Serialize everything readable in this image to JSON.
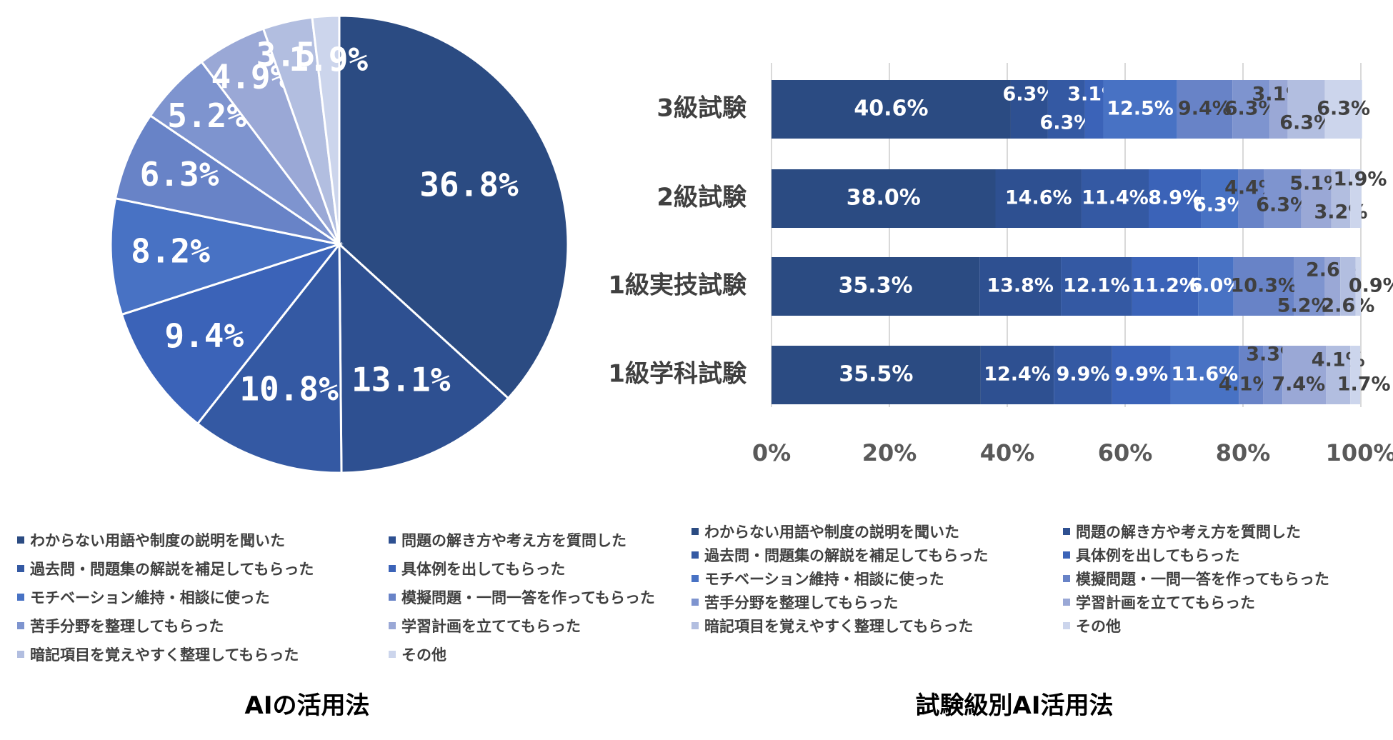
{
  "colors": [
    "#2B4B82",
    "#2E5091",
    "#3459A3",
    "#3B63B8",
    "#4872C4",
    "#6883C7",
    "#7E94CF",
    "#9AA8D6",
    "#B2BEE0",
    "#CCD5EC"
  ],
  "legend_labels": [
    "わからない用語や制度の説明を聞いた",
    "問題の解き方や考え方を質問した",
    "過去問・問題集の解説を補足してもらった",
    "具体例を出してもらった",
    "モチベーション維持・相談に使った",
    "模擬問題・一問一答を作ってもらった",
    "苦手分野を整理してもらった",
    "学習計画を立ててもらった",
    "暗記項目を覚えやすく整理してもらった",
    "その他"
  ],
  "captions": {
    "pie": "AIの活用法",
    "bar": "試験級別AI活用法"
  },
  "chart_data": [
    {
      "type": "pie",
      "title": "AIの活用法",
      "categories": [
        "わからない用語や制度の説明を聞いた",
        "問題の解き方や考え方を質問した",
        "過去問・問題集の解説を補足してもらった",
        "具体例を出してもらった",
        "モチベーション維持・相談に使った",
        "模擬問題・一問一答を作ってもらった",
        "苦手分野を整理してもらった",
        "学習計画を立ててもらった",
        "暗記項目を覚えやすく整理してもらった",
        "その他"
      ],
      "values": [
        36.8,
        13.1,
        10.8,
        9.4,
        8.2,
        6.3,
        5.2,
        4.9,
        3.5,
        1.9
      ],
      "labels": [
        "36.8%",
        "13.1%",
        "10.8%",
        "9.4%",
        "8.2%",
        "6.3%",
        "5.2%",
        "4.9%",
        "3.5%",
        "1.9%"
      ]
    },
    {
      "type": "bar",
      "orientation": "horizontal",
      "stacked": "100%",
      "title": "試験級別AI活用法",
      "categories": [
        "3級試験",
        "2級試験",
        "1級実技試験",
        "1級学科試験"
      ],
      "x_ticks": [
        "0%",
        "20%",
        "40%",
        "60%",
        "80%",
        "100%"
      ],
      "xlim": [
        0,
        100
      ],
      "series": [
        {
          "name": "わからない用語や制度の説明を聞いた",
          "values": [
            40.6,
            38.0,
            35.3,
            35.5
          ]
        },
        {
          "name": "問題の解き方や考え方を質問した",
          "values": [
            6.3,
            14.6,
            13.8,
            12.4
          ]
        },
        {
          "name": "過去問・問題集の解説を補足してもらった",
          "values": [
            6.3,
            11.4,
            12.1,
            9.9
          ]
        },
        {
          "name": "具体例を出してもらった",
          "values": [
            3.1,
            8.9,
            11.2,
            9.9
          ]
        },
        {
          "name": "モチベーション維持・相談に使った",
          "values": [
            12.5,
            6.3,
            6.0,
            11.6
          ]
        },
        {
          "name": "模擬問題・一問一答を作ってもらった",
          "values": [
            9.4,
            4.4,
            10.3,
            4.1
          ]
        },
        {
          "name": "苦手分野を整理してもらった",
          "values": [
            6.3,
            6.3,
            5.2,
            3.3
          ]
        },
        {
          "name": "学習計画を立ててもらった",
          "values": [
            3.1,
            5.1,
            2.6,
            7.4
          ]
        },
        {
          "name": "暗記項目を覚えやすく整理してもらった",
          "values": [
            6.3,
            3.2,
            2.6,
            4.1
          ]
        },
        {
          "name": "その他",
          "values": [
            6.3,
            1.9,
            0.9,
            1.7
          ]
        }
      ],
      "labels": [
        [
          "40.6%",
          "6.3%",
          "6.3%",
          "3.1%",
          "12.5%",
          "9.4%",
          "6.3%",
          "3.1%",
          "6.3%",
          "6.3%"
        ],
        [
          "38.0%",
          "14.6%",
          "11.4%",
          "8.9%",
          "6.3%",
          "4.4%",
          "6.3%",
          "5.1%",
          "3.2%",
          "1.9%"
        ],
        [
          "35.3%",
          "13.8%",
          "12.1%",
          "11.2%",
          "6.0%",
          "10.3%",
          "5.2%",
          "2.6%",
          "2.6%",
          "0.9%"
        ],
        [
          "35.5%",
          "12.4%",
          "9.9%",
          "9.9%",
          "11.6%",
          "4.1%",
          "3.3%",
          "7.4%",
          "4.1%",
          "1.7%"
        ]
      ]
    }
  ]
}
